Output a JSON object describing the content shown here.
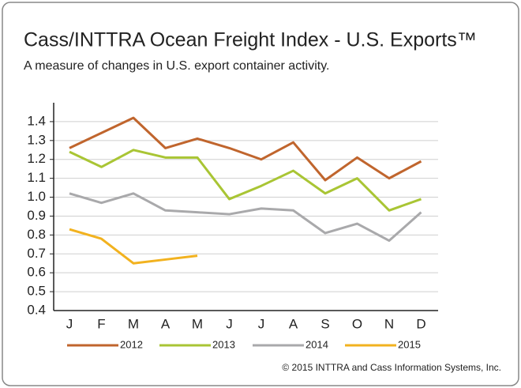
{
  "chart_data": {
    "type": "line",
    "title": "Cass/INTTRA Ocean Freight Index - U.S. Exports™",
    "subtitle": "A measure of changes in U.S. export container activity.",
    "footer": "© 2015 INTTRA and Cass Information Systems, Inc.",
    "categories": [
      "J",
      "F",
      "M",
      "A",
      "M",
      "J",
      "J",
      "A",
      "S",
      "O",
      "N",
      "D"
    ],
    "series": [
      {
        "name": "2012",
        "color": "#c0652d",
        "values": [
          1.26,
          1.34,
          1.42,
          1.26,
          1.31,
          1.26,
          1.2,
          1.29,
          1.09,
          1.21,
          1.1,
          1.19
        ]
      },
      {
        "name": "2013",
        "color": "#a9c534",
        "values": [
          1.24,
          1.16,
          1.25,
          1.21,
          1.21,
          0.99,
          1.06,
          1.14,
          1.02,
          1.1,
          0.93,
          0.99
        ]
      },
      {
        "name": "2014",
        "color": "#a9a9ab",
        "values": [
          1.02,
          0.97,
          1.02,
          0.93,
          0.92,
          0.91,
          0.94,
          0.93,
          0.81,
          0.86,
          0.77,
          0.92
        ]
      },
      {
        "name": "2015",
        "color": "#f2b21f",
        "values": [
          0.83,
          0.78,
          0.65,
          0.67,
          0.69,
          null,
          null,
          null,
          null,
          null,
          null,
          null
        ]
      }
    ],
    "ylim": [
      0.4,
      1.5
    ],
    "yticks": [
      0.4,
      0.5,
      0.6,
      0.7,
      0.8,
      0.9,
      {
        "value": 1,
        "label": "1.0"
      },
      1.1,
      1.2,
      1.3,
      1.4
    ],
    "grid": true
  }
}
